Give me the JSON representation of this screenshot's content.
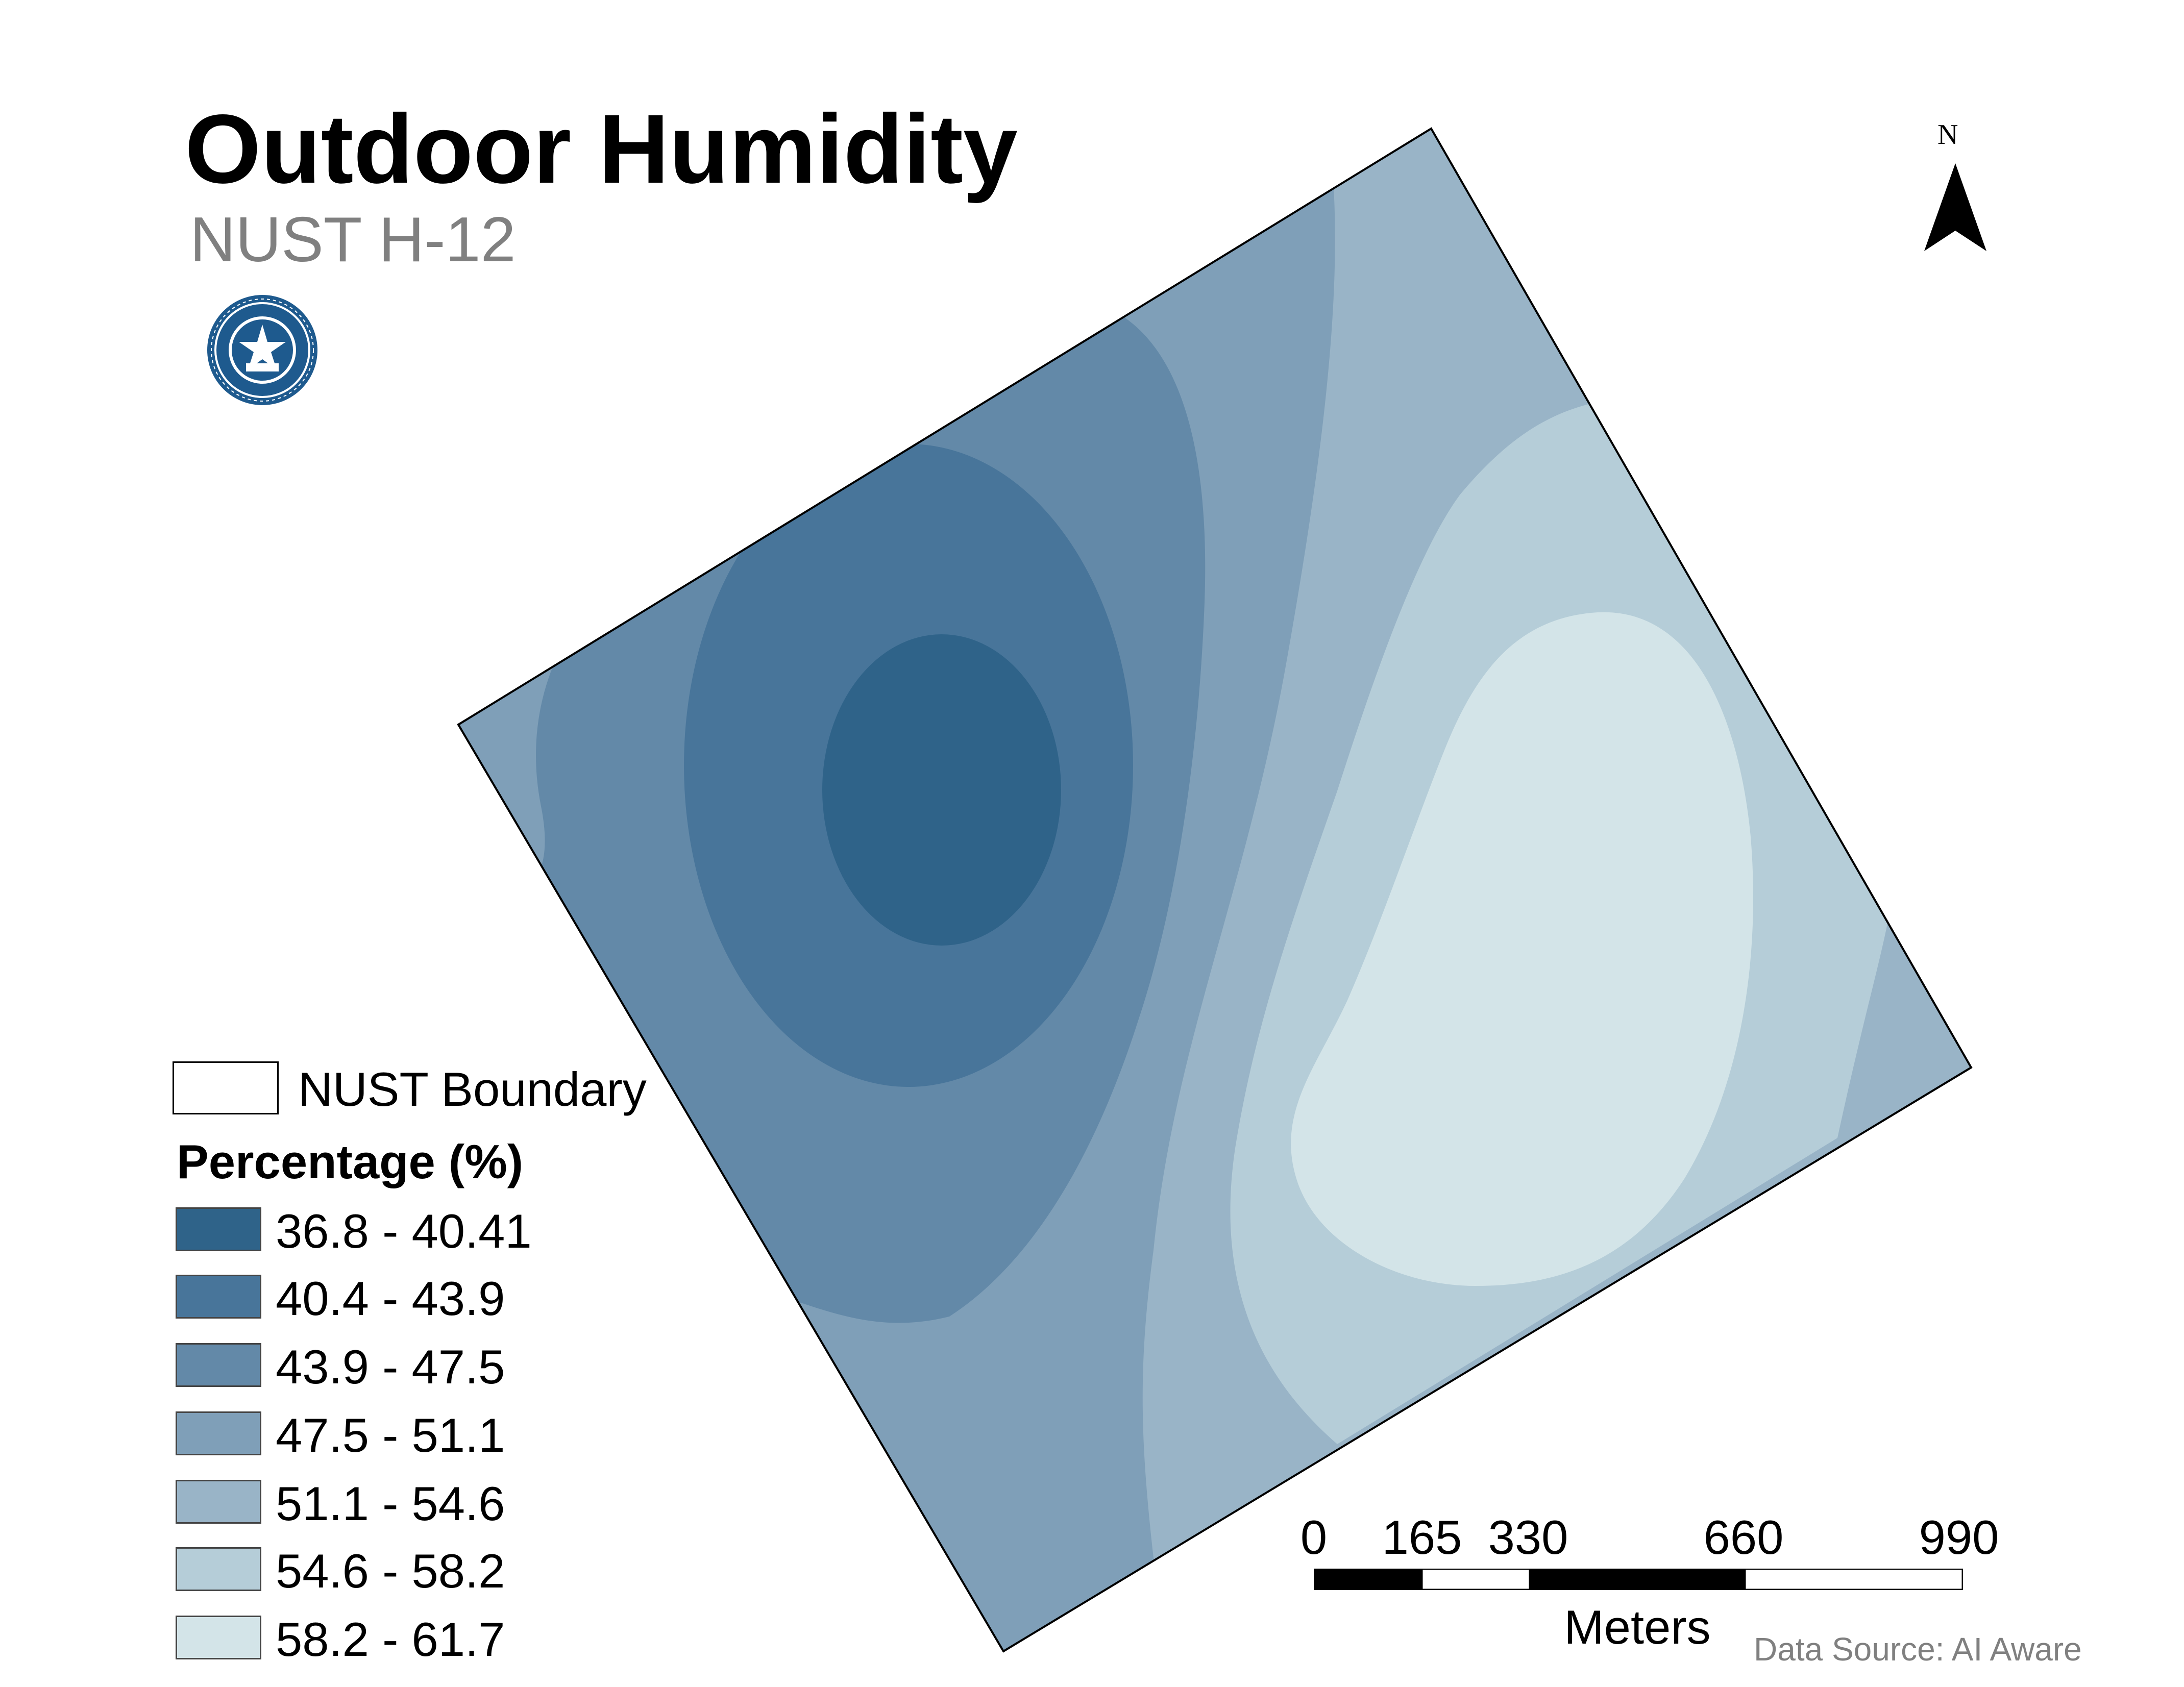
{
  "title": "Outdoor Humidity",
  "subtitle": "NUST H-12",
  "logo_icon": "university-seal-icon",
  "north_label": "N",
  "boundary_legend_label": "NUST Boundary",
  "legend": {
    "title": "Percentage (%)",
    "classes": [
      {
        "label": "36.8 - 40.41",
        "color": "#2f6389"
      },
      {
        "label": "40.4 - 43.9",
        "color": "#48759a"
      },
      {
        "label": "43.9 - 47.5",
        "color": "#6389a8"
      },
      {
        "label": "47.5 - 51.1",
        "color": "#7f9fb8"
      },
      {
        "label": "51.1 - 54.6",
        "color": "#99b4c7"
      },
      {
        "label": "54.6 - 58.2",
        "color": "#b5cdd8"
      },
      {
        "label": "58.2 - 61.7",
        "color": "#d3e4e8"
      }
    ]
  },
  "scale_bar": {
    "ticks": [
      "0",
      "165",
      "330",
      "660",
      "990"
    ],
    "unit": "Meters"
  },
  "data_source": "Data Source: AI Aware",
  "colors": {
    "boundary_stroke": "#000000",
    "scale_dark": "#000000",
    "scale_light": "#ffffff",
    "seal_blue": "#1e5a8e"
  }
}
